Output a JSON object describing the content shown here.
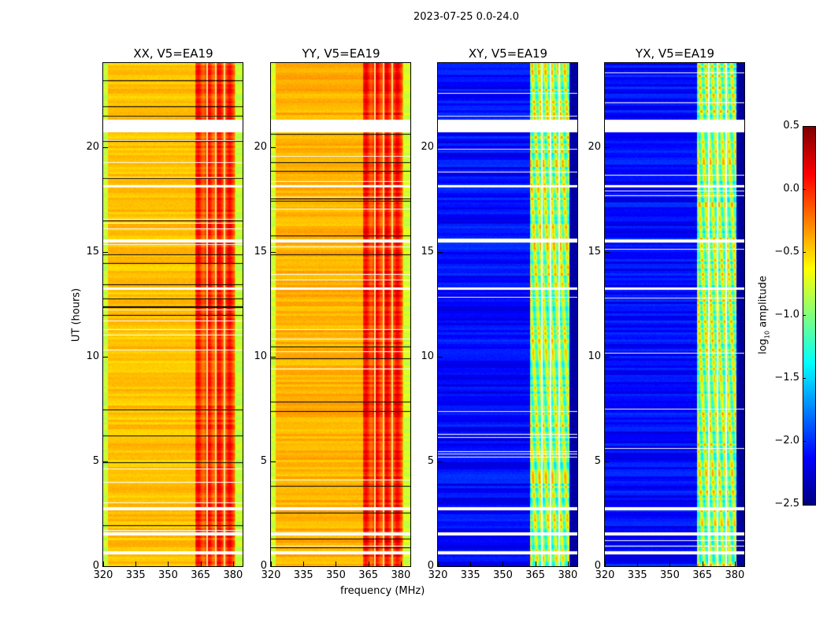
{
  "chart_data": {
    "type": "heatmap",
    "suptitle": "2023-07-25 0.0-24.0",
    "xlabel": "frequency (MHz)",
    "ylabel": "UT (hours)",
    "xlim": [
      320,
      384.4
    ],
    "ylim": [
      0,
      24
    ],
    "xticks": [
      "320",
      "335",
      "350",
      "365",
      "380"
    ],
    "yticks": [
      "0",
      "5",
      "10",
      "15",
      "20"
    ],
    "panels": [
      {
        "title": "XX, V5=EA19",
        "kind": "parallel",
        "low_band_level": -0.45,
        "high_band_level": -0.05
      },
      {
        "title": "YY, V5=EA19",
        "kind": "parallel",
        "low_band_level": -0.4,
        "high_band_level": 0.0
      },
      {
        "title": "XY, V5=EA19",
        "kind": "cross",
        "low_band_level": -2.1,
        "high_band_level": -0.9
      },
      {
        "title": "YX, V5=EA19",
        "kind": "cross",
        "low_band_level": -2.1,
        "high_band_level": -0.9
      }
    ],
    "high_band_mhz": [
      362.5,
      380.5
    ],
    "flagged_hours": [
      [
        0.6,
        0.75
      ],
      [
        1.5,
        1.65
      ],
      [
        2.7,
        2.85
      ],
      [
        15.45,
        15.6
      ],
      [
        20.7,
        21.3
      ],
      [
        18.1,
        18.2
      ],
      [
        13.2,
        13.3
      ]
    ],
    "colorbar": {
      "label": "log10 amplitude",
      "label_main": "log",
      "label_sub": "10",
      "label_rest": " amplitude",
      "range": [
        -2.5,
        0.5
      ],
      "ticks": [
        "0.5",
        "0.0",
        "−0.5",
        "−1.0",
        "−1.5",
        "−2.0",
        "−2.5"
      ],
      "colormap": "jet"
    }
  }
}
